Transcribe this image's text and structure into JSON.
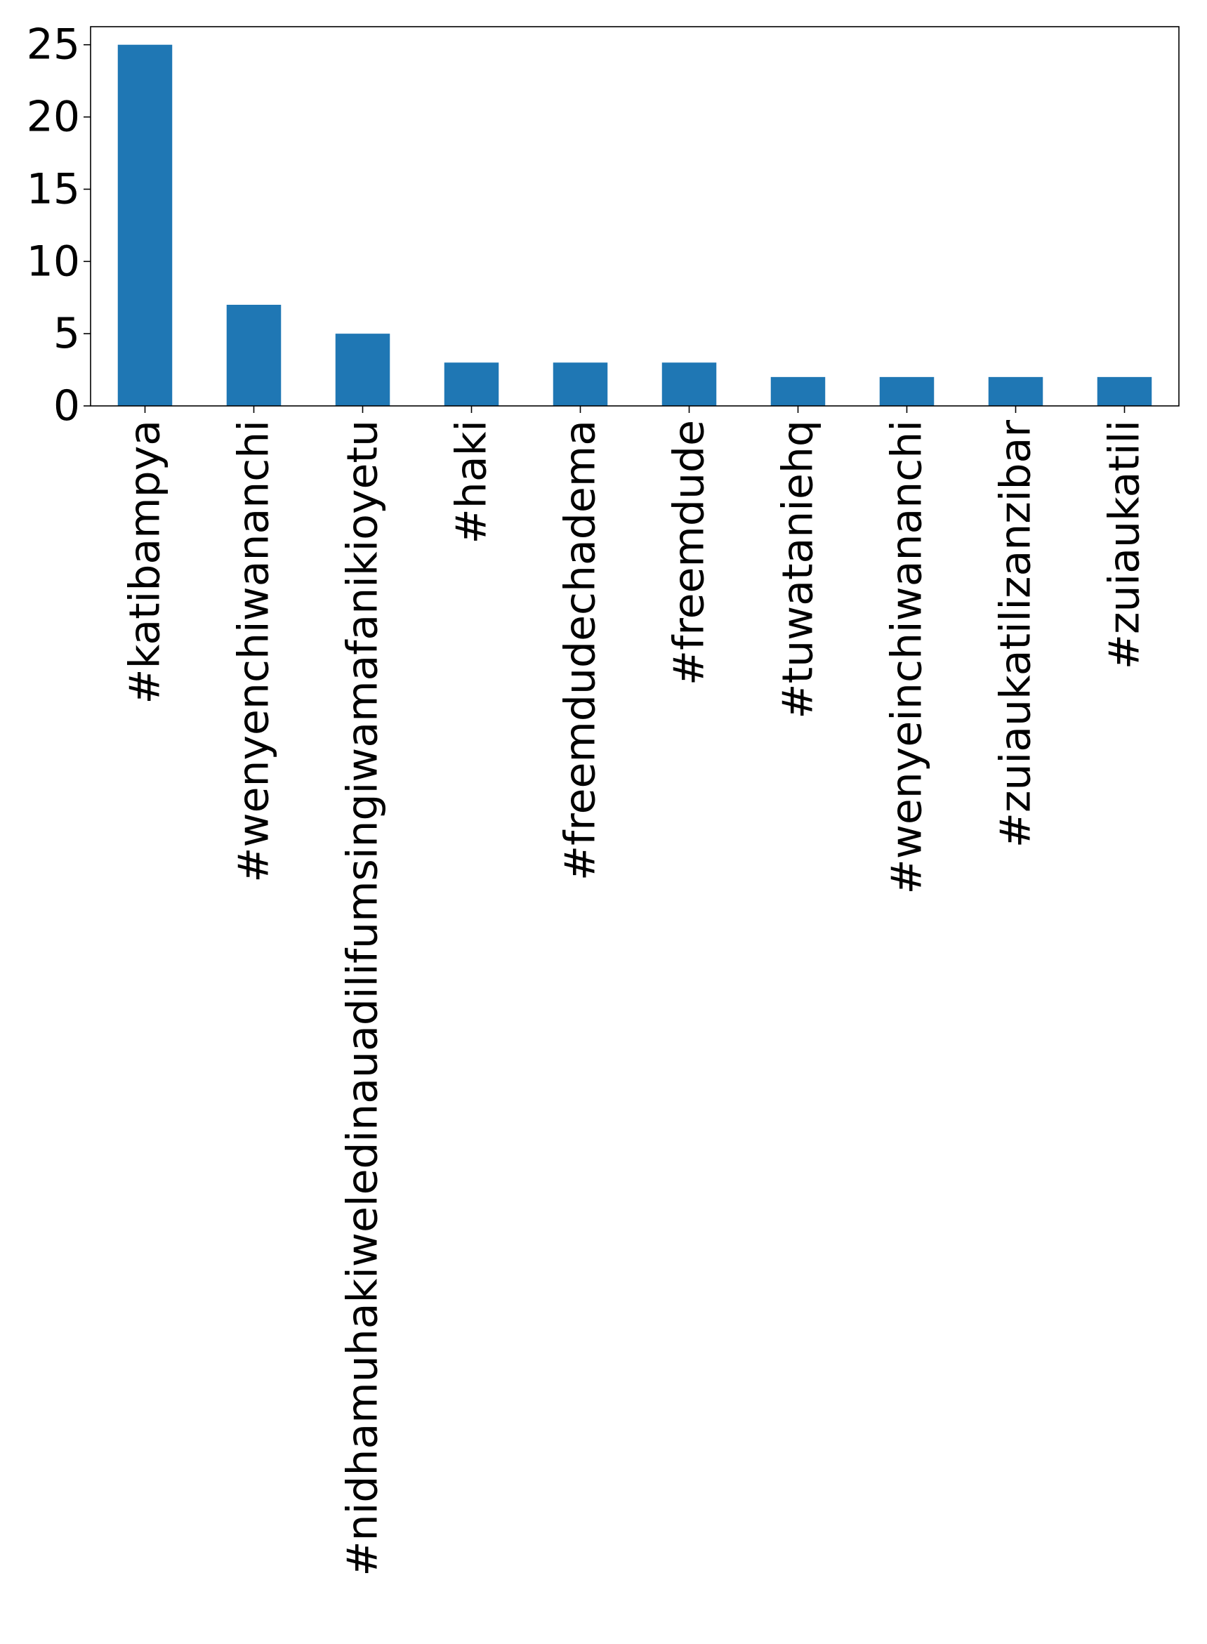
{
  "chart_data": {
    "type": "bar",
    "categories": [
      "#katibampya",
      "#wenyenchiwananchi",
      "#nidhamuhakiweledinauadilifumsingiwamafanikioyetu",
      "#haki",
      "#freemdudechadema",
      "#freemdude",
      "#tuwataniehq",
      "#wenyeinchiwananchi",
      "#zuiaukatilizanzibar",
      "#zuiaukatili"
    ],
    "values": [
      25,
      7,
      5,
      3,
      3,
      3,
      2,
      2,
      2,
      2
    ],
    "title": "",
    "xlabel": "",
    "ylabel": "",
    "ylim": [
      0,
      26.25
    ],
    "yticks": [
      0,
      5,
      10,
      15,
      20,
      25
    ],
    "grid": false,
    "legend": "none",
    "bar_color": "#1f77b4"
  }
}
